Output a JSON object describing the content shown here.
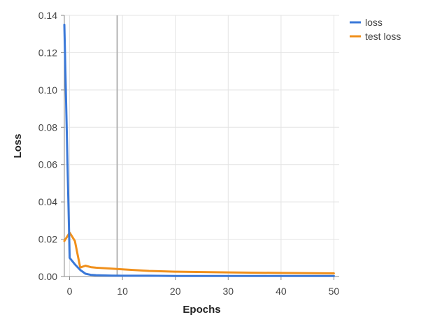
{
  "chart_data": {
    "type": "line",
    "title": "",
    "xlabel": "Epochs",
    "ylabel": "Loss",
    "xlim": [
      -1,
      51
    ],
    "ylim": [
      0,
      0.14
    ],
    "x_ticks": [
      0,
      10,
      20,
      30,
      40,
      50
    ],
    "y_ticks": [
      0.0,
      0.02,
      0.04,
      0.06,
      0.08,
      0.1,
      0.12,
      0.14
    ],
    "x_tick_labels": [
      "0",
      "10",
      "20",
      "30",
      "40",
      "50"
    ],
    "y_tick_labels": [
      "0.00",
      "0.02",
      "0.04",
      "0.06",
      "0.08",
      "0.10",
      "0.12",
      "0.14"
    ],
    "grid": true,
    "legend_position": "top-right",
    "marker_line_x": 9,
    "series": [
      {
        "name": "loss",
        "color": "#3a78d8",
        "x": [
          -1,
          0,
          1,
          2,
          3,
          4,
          5,
          6,
          8,
          10,
          15,
          20,
          30,
          40,
          50
        ],
        "y": [
          0.135,
          0.01,
          0.0065,
          0.0035,
          0.0015,
          0.0009,
          0.0007,
          0.0006,
          0.0005,
          0.0004,
          0.0004,
          0.0003,
          0.0003,
          0.0003,
          0.0003
        ]
      },
      {
        "name": "test loss",
        "color": "#f0901c",
        "x": [
          -1,
          0,
          1,
          2,
          3,
          4,
          5,
          8,
          10,
          15,
          20,
          30,
          40,
          50
        ],
        "y": [
          0.019,
          0.0235,
          0.019,
          0.0048,
          0.0058,
          0.005,
          0.0047,
          0.0042,
          0.0038,
          0.003,
          0.0026,
          0.0022,
          0.0019,
          0.0017
        ]
      }
    ]
  }
}
